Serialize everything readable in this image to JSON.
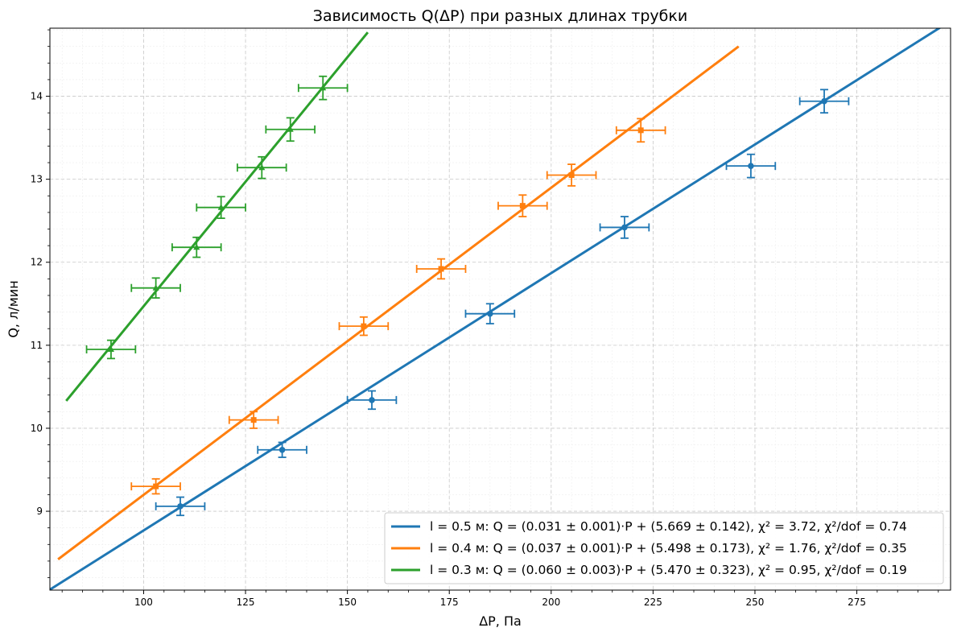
{
  "chart_data": {
    "type": "scatter",
    "title": "Зависимость Q(ΔP) при разных длинах трубки",
    "xlabel": "ΔP, Па",
    "ylabel": "Q, л/мин",
    "xlim": [
      77,
      298
    ],
    "ylim": [
      8.05,
      14.82
    ],
    "xticks": [
      100,
      125,
      150,
      175,
      200,
      225,
      250,
      275
    ],
    "yticks": [
      9,
      10,
      11,
      12,
      13,
      14
    ],
    "grid": true,
    "minor_grid": true,
    "legend_position": "lower-right",
    "series": [
      {
        "name": "l = 0.5 м: Q = (0.031 ± 0.001)·P + (5.669 ± 0.142), χ² = 3.72, χ²/dof = 0.74",
        "color": "#1f77b4",
        "marker": "circle",
        "points": [
          {
            "x": 109,
            "y": 9.06,
            "xerr": 6,
            "yerr": 0.11
          },
          {
            "x": 134,
            "y": 9.74,
            "xerr": 6,
            "yerr": 0.09
          },
          {
            "x": 156,
            "y": 10.34,
            "xerr": 6,
            "yerr": 0.11
          },
          {
            "x": 185,
            "y": 11.38,
            "xerr": 6,
            "yerr": 0.12
          },
          {
            "x": 218,
            "y": 12.42,
            "xerr": 6,
            "yerr": 0.13
          },
          {
            "x": 249,
            "y": 13.16,
            "xerr": 6,
            "yerr": 0.14
          },
          {
            "x": 267,
            "y": 13.94,
            "xerr": 6,
            "yerr": 0.14
          }
        ],
        "fit": {
          "slope": 0.031,
          "intercept": 5.669,
          "x_range": [
            77,
            298
          ]
        }
      },
      {
        "name": "l = 0.4 м: Q = (0.037 ± 0.001)·P + (5.498 ± 0.173), χ² = 1.76, χ²/dof = 0.35",
        "color": "#ff7f0e",
        "marker": "square",
        "points": [
          {
            "x": 103,
            "y": 9.3,
            "xerr": 6,
            "yerr": 0.09
          },
          {
            "x": 127,
            "y": 10.1,
            "xerr": 6,
            "yerr": 0.1
          },
          {
            "x": 154,
            "y": 11.23,
            "xerr": 6,
            "yerr": 0.11
          },
          {
            "x": 173,
            "y": 11.92,
            "xerr": 6,
            "yerr": 0.12
          },
          {
            "x": 193,
            "y": 12.68,
            "xerr": 6,
            "yerr": 0.13
          },
          {
            "x": 205,
            "y": 13.05,
            "xerr": 6,
            "yerr": 0.13
          },
          {
            "x": 222,
            "y": 13.59,
            "xerr": 6,
            "yerr": 0.14
          }
        ],
        "fit": {
          "slope": 0.037,
          "intercept": 5.498,
          "x_range": [
            79,
            246
          ]
        }
      },
      {
        "name": "l = 0.3 м: Q = (0.060 ± 0.003)·P + (5.470 ± 0.323), χ² = 0.95, χ²/dof = 0.19",
        "color": "#2ca02c",
        "marker": "triangle",
        "points": [
          {
            "x": 92,
            "y": 10.95,
            "xerr": 6,
            "yerr": 0.11
          },
          {
            "x": 103,
            "y": 11.69,
            "xerr": 6,
            "yerr": 0.12
          },
          {
            "x": 113,
            "y": 12.18,
            "xerr": 6,
            "yerr": 0.12
          },
          {
            "x": 119,
            "y": 12.66,
            "xerr": 6,
            "yerr": 0.13
          },
          {
            "x": 129,
            "y": 13.14,
            "xerr": 6,
            "yerr": 0.13
          },
          {
            "x": 136,
            "y": 13.6,
            "xerr": 6,
            "yerr": 0.14
          },
          {
            "x": 144,
            "y": 14.1,
            "xerr": 6,
            "yerr": 0.14
          }
        ],
        "fit": {
          "slope": 0.06,
          "intercept": 5.47,
          "x_range": [
            81,
            155
          ]
        }
      }
    ]
  }
}
